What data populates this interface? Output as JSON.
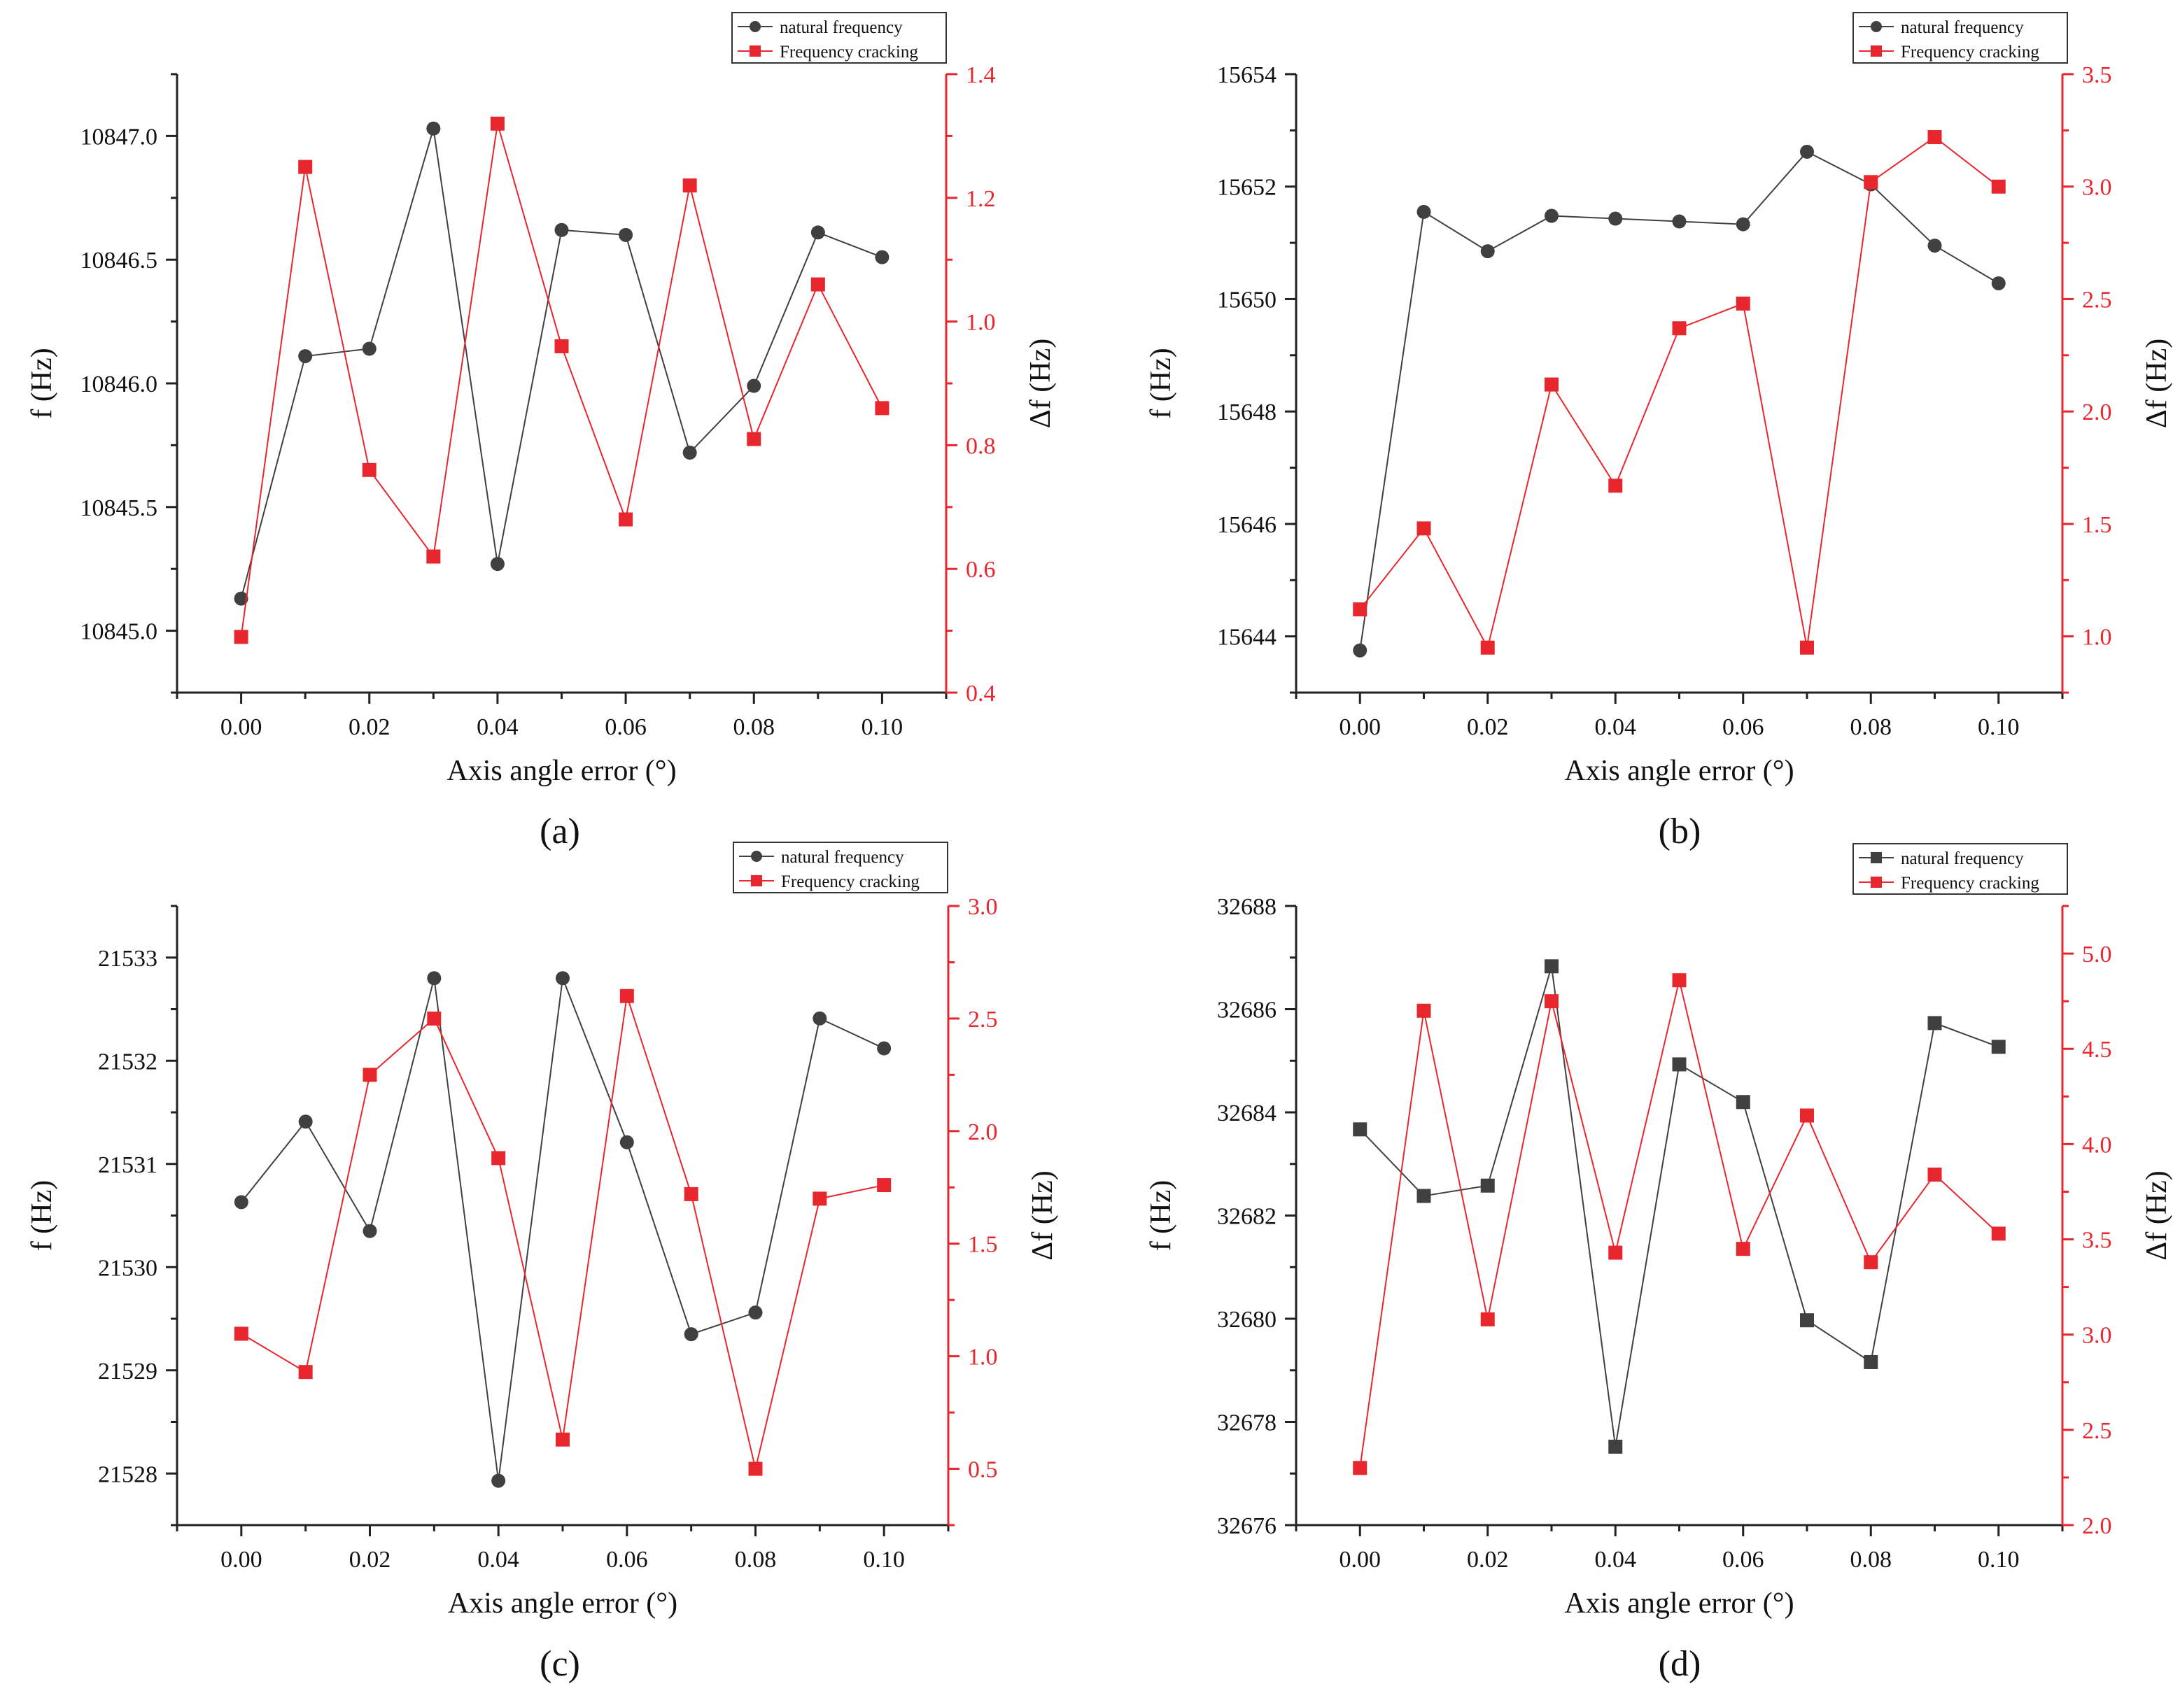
{
  "figure": {
    "colors": {
      "natural": "#404040",
      "cracking": "#e8262d",
      "axis": "#222222"
    }
  },
  "chart_data": [
    {
      "panel_label": "(a)",
      "type": "line",
      "title": "",
      "xlabel": "Axis angle error (°)",
      "ylabel": "f (Hz)",
      "y2label": "Δf (Hz)",
      "xlim": [
        -0.01,
        0.11
      ],
      "ylim": [
        10844.75,
        10847.25
      ],
      "y2lim": [
        0.4,
        1.4
      ],
      "x": [
        0.0,
        0.01,
        0.02,
        0.03,
        0.04,
        0.05,
        0.06,
        0.07,
        0.08,
        0.09,
        0.1
      ],
      "x_ticks": [
        0.0,
        0.02,
        0.04,
        0.06,
        0.08,
        0.1
      ],
      "x_tick_labels": [
        "0.00",
        "0.02",
        "0.04",
        "0.06",
        "0.08",
        "0.10"
      ],
      "y_ticks": [
        10845.0,
        10845.5,
        10846.0,
        10846.5,
        10847.0
      ],
      "y_tick_labels": [
        "10845.0",
        "10845.5",
        "10846.0",
        "10846.5",
        "10847.0"
      ],
      "y2_ticks": [
        0.4,
        0.6,
        0.8,
        1.0,
        1.2,
        1.4
      ],
      "y2_tick_labels": [
        "0.4",
        "0.6",
        "0.8",
        "1.0",
        "1.2",
        "1.4"
      ],
      "legend_position": "top-right",
      "series": [
        {
          "name": "natural frequency",
          "axis": "left",
          "marker": "circle",
          "values": [
            10845.13,
            10846.11,
            10846.14,
            10847.03,
            10845.27,
            10846.62,
            10846.6,
            10845.72,
            10845.99,
            10846.61,
            10846.51
          ]
        },
        {
          "name": "Frequency cracking",
          "axis": "right",
          "marker": "square",
          "values": [
            0.49,
            1.25,
            0.76,
            0.62,
            1.32,
            0.96,
            0.68,
            1.22,
            0.81,
            1.06,
            0.86
          ]
        }
      ]
    },
    {
      "panel_label": "(b)",
      "type": "line",
      "title": "",
      "xlabel": "Axis angle error (°)",
      "ylabel": "f (Hz)",
      "y2label": "Δf (Hz)",
      "xlim": [
        -0.01,
        0.11
      ],
      "ylim": [
        15643,
        15654
      ],
      "y2lim": [
        0.75,
        3.5
      ],
      "x": [
        0.0,
        0.01,
        0.02,
        0.03,
        0.04,
        0.05,
        0.06,
        0.07,
        0.08,
        0.09,
        0.1
      ],
      "x_ticks": [
        0.0,
        0.02,
        0.04,
        0.06,
        0.08,
        0.1
      ],
      "x_tick_labels": [
        "0.00",
        "0.02",
        "0.04",
        "0.06",
        "0.08",
        "0.10"
      ],
      "y_ticks": [
        15644,
        15646,
        15648,
        15650,
        15652,
        15654
      ],
      "y_tick_labels": [
        "15644",
        "15646",
        "15648",
        "15650",
        "15652",
        "15654"
      ],
      "y2_ticks": [
        1.0,
        1.5,
        2.0,
        2.5,
        3.0,
        3.5
      ],
      "y2_tick_labels": [
        "1.0",
        "1.5",
        "2.0",
        "2.5",
        "3.0",
        "3.5"
      ],
      "legend_position": "top-right",
      "series": [
        {
          "name": "natural frequency",
          "axis": "left",
          "marker": "circle",
          "values": [
            15643.75,
            15651.55,
            15650.85,
            15651.48,
            15651.43,
            15651.38,
            15651.33,
            15652.62,
            15652.04,
            15650.95,
            15650.28
          ]
        },
        {
          "name": "Frequency cracking",
          "axis": "right",
          "marker": "square",
          "values": [
            1.12,
            1.48,
            0.95,
            2.12,
            1.67,
            2.37,
            2.48,
            0.95,
            3.02,
            3.22,
            3.0
          ]
        }
      ]
    },
    {
      "panel_label": "(c)",
      "type": "line",
      "title": "",
      "xlabel": "Axis angle error (°)",
      "ylabel": "f (Hz)",
      "y2label": "Δf (Hz)",
      "xlim": [
        -0.01,
        0.11
      ],
      "ylim": [
        21527.5,
        21533.5
      ],
      "y2lim": [
        0.25,
        3.0
      ],
      "x": [
        0.0,
        0.01,
        0.02,
        0.03,
        0.04,
        0.05,
        0.06,
        0.07,
        0.08,
        0.09,
        0.1
      ],
      "x_ticks": [
        0.0,
        0.02,
        0.04,
        0.06,
        0.08,
        0.1
      ],
      "x_tick_labels": [
        "0.00",
        "0.02",
        "0.04",
        "0.06",
        "0.08",
        "0.10"
      ],
      "y_ticks": [
        21528,
        21529,
        21530,
        21531,
        21532,
        21533
      ],
      "y_tick_labels": [
        "21528",
        "21529",
        "21530",
        "21531",
        "21532",
        "21533"
      ],
      "y2_ticks": [
        0.5,
        1.0,
        1.5,
        2.0,
        2.5,
        3.0
      ],
      "y2_tick_labels": [
        "0.5",
        "1.0",
        "1.5",
        "2.0",
        "2.5",
        "3.0"
      ],
      "legend_position": "top-right",
      "series": [
        {
          "name": "natural frequency",
          "axis": "left",
          "marker": "circle",
          "values": [
            21530.63,
            21531.41,
            21530.35,
            21532.8,
            21527.93,
            21532.8,
            21531.21,
            21529.35,
            21529.56,
            21532.41,
            21532.12
          ]
        },
        {
          "name": "Frequency cracking",
          "axis": "right",
          "marker": "square",
          "values": [
            1.1,
            0.93,
            2.25,
            2.5,
            1.88,
            0.63,
            2.6,
            1.72,
            0.5,
            1.7,
            1.76
          ]
        }
      ]
    },
    {
      "panel_label": "(d)",
      "type": "line",
      "title": "",
      "xlabel": "Axis angle error (°)",
      "ylabel": "f (Hz)",
      "y2label": "Δf (Hz)",
      "xlim": [
        -0.01,
        0.11
      ],
      "ylim": [
        32676,
        32688
      ],
      "y2lim": [
        2.0,
        5.25
      ],
      "x": [
        0.0,
        0.01,
        0.02,
        0.03,
        0.04,
        0.05,
        0.06,
        0.07,
        0.08,
        0.09,
        0.1
      ],
      "x_ticks": [
        0.0,
        0.02,
        0.04,
        0.06,
        0.08,
        0.1
      ],
      "x_tick_labels": [
        "0.00",
        "0.02",
        "0.04",
        "0.06",
        "0.08",
        "0.10"
      ],
      "y_ticks": [
        32676,
        32678,
        32680,
        32682,
        32684,
        32686,
        32688
      ],
      "y_tick_labels": [
        "32676",
        "32678",
        "32680",
        "32682",
        "32684",
        "32686",
        "32688"
      ],
      "y2_ticks": [
        2.0,
        2.5,
        3.0,
        3.5,
        4.0,
        4.5,
        5.0
      ],
      "y2_tick_labels": [
        "2.0",
        "2.5",
        "3.0",
        "3.5",
        "4.0",
        "4.5",
        "5.0"
      ],
      "legend_position": "top-right",
      "series": [
        {
          "name": "natural frequency",
          "axis": "left",
          "marker": "square",
          "values": [
            32683.67,
            32682.38,
            32682.58,
            32686.83,
            32677.52,
            32684.93,
            32684.2,
            32679.97,
            32679.16,
            32685.73,
            32685.27
          ]
        },
        {
          "name": "Frequency cracking",
          "axis": "right",
          "marker": "square",
          "values": [
            2.3,
            4.7,
            3.08,
            4.75,
            3.43,
            4.86,
            3.45,
            4.15,
            3.38,
            3.84,
            3.53
          ]
        }
      ]
    }
  ]
}
